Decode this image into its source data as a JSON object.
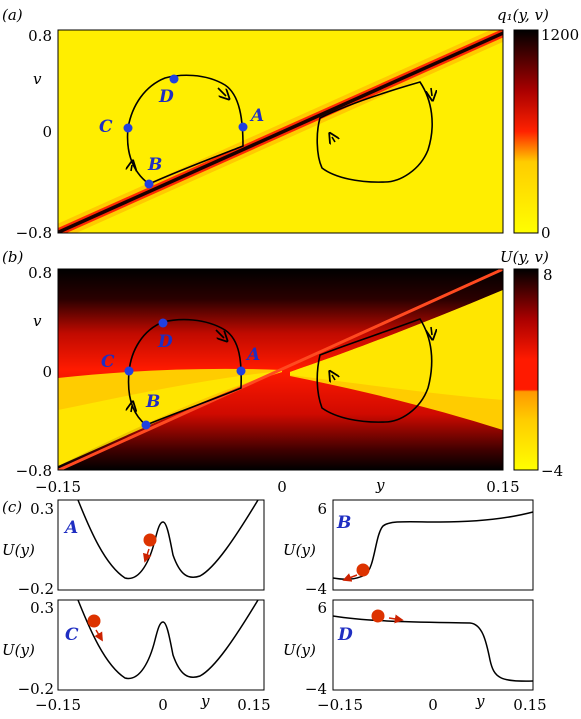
{
  "panel_a": {
    "label": "(a)",
    "colorbar_title": "q₁(y, v)",
    "colorbar_max": "1200",
    "colorbar_min": "0",
    "yticks": [
      "0.8",
      "0",
      "−0.8"
    ],
    "ylabel": "v",
    "points": [
      "A",
      "B",
      "C",
      "D"
    ],
    "colors": {
      "background": "#ffee00",
      "ridge": "#1a0000"
    }
  },
  "panel_b": {
    "label": "(b)",
    "colorbar_title": "U(y, v)",
    "colorbar_max": "8",
    "colorbar_min": "−4",
    "yticks": [
      "0.8",
      "0",
      "−0.8"
    ],
    "ylabel": "v",
    "xticks": [
      "−0.15",
      "0",
      "0.15"
    ],
    "xlabel": "y",
    "points": [
      "A",
      "B",
      "C",
      "D"
    ],
    "colors": {
      "high": "#000000",
      "mid": "#ff1a00",
      "low": "#ffee00"
    }
  },
  "panel_c": {
    "label": "(c)",
    "ylabel": "U(y)",
    "xlabel": "y",
    "subplots": [
      {
        "id": "A",
        "yticks": [
          "0.3",
          "−0.2"
        ]
      },
      {
        "id": "B",
        "yticks": [
          "6",
          "−4"
        ]
      },
      {
        "id": "C",
        "yticks": [
          "0.3",
          "−0.2"
        ],
        "xticks": [
          "−0.15",
          "0",
          "0.15"
        ]
      },
      {
        "id": "D",
        "yticks": [
          "6",
          "−4"
        ],
        "xticks": [
          "−0.15",
          "0",
          "0.15"
        ]
      }
    ]
  }
}
